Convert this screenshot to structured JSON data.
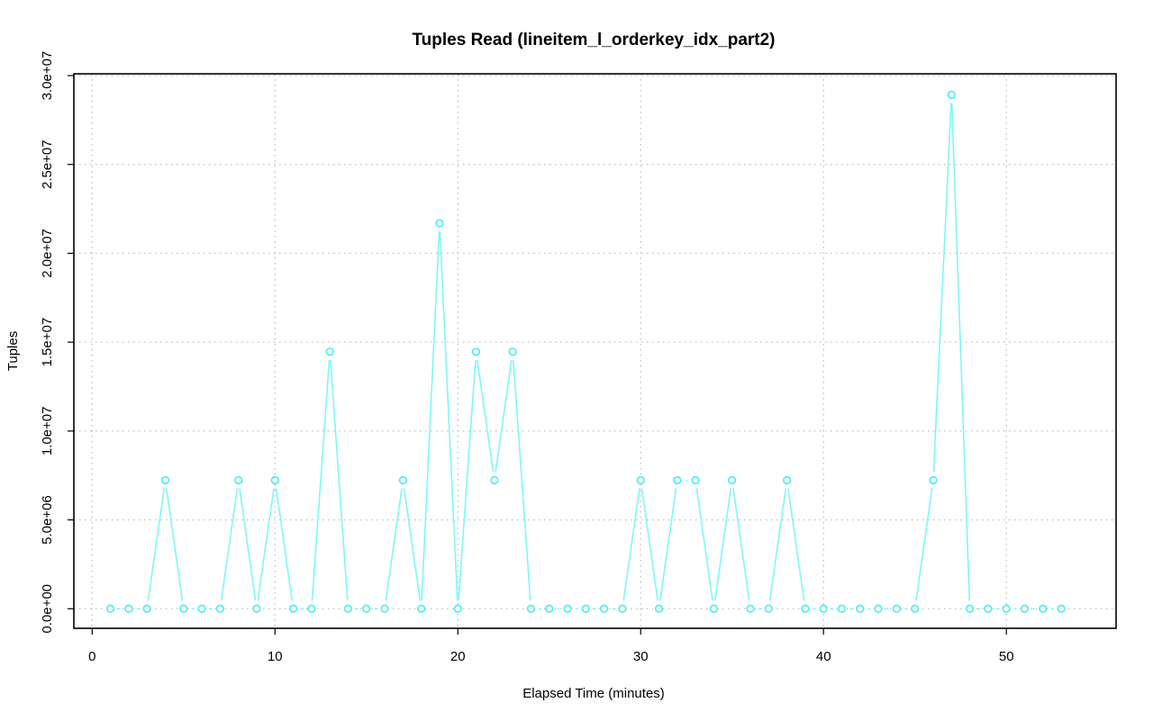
{
  "chart_data": {
    "type": "line",
    "title": "Tuples Read (lineitem_l_orderkey_idx_part2)",
    "xlabel": "Elapsed Time (minutes)",
    "ylabel": "Tuples",
    "xlim": [
      -1,
      56
    ],
    "ylim": [
      -1100000,
      30100000
    ],
    "x_ticks": [
      0,
      10,
      20,
      30,
      40,
      50
    ],
    "x_tick_labels": [
      "0",
      "10",
      "20",
      "30",
      "40",
      "50"
    ],
    "y_ticks": [
      0,
      5000000,
      10000000,
      15000000,
      20000000,
      25000000,
      30000000
    ],
    "y_tick_labels": [
      "0.0e+00",
      "5.0e+06",
      "1.0e+07",
      "1.5e+07",
      "2.0e+07",
      "2.5e+07",
      "3.0e+07"
    ],
    "grid": true,
    "series_color": "#7ff7f7",
    "series": [
      {
        "x": [
          1,
          2,
          3,
          4,
          5,
          6,
          7,
          8,
          9,
          10,
          11,
          12,
          13,
          14,
          15,
          16,
          17,
          18,
          19,
          20,
          21,
          22,
          23,
          24,
          25,
          26,
          27,
          28,
          29,
          30,
          31,
          32,
          33,
          34,
          35,
          36,
          37,
          38,
          39,
          40,
          41,
          42,
          43,
          44,
          45,
          46,
          47,
          48,
          49,
          50,
          51,
          52,
          53
        ],
        "values": [
          0,
          0,
          0,
          7230000,
          0,
          0,
          0,
          7230000,
          0,
          7230000,
          0,
          0,
          14460000,
          0,
          0,
          0,
          7230000,
          0,
          21690000,
          0,
          14460000,
          7230000,
          14460000,
          0,
          0,
          0,
          0,
          0,
          0,
          7230000,
          0,
          7230000,
          7230000,
          0,
          7230000,
          0,
          0,
          7230000,
          0,
          0,
          0,
          0,
          0,
          0,
          0,
          7230000,
          28920000,
          0,
          0,
          0,
          0,
          0,
          0
        ]
      }
    ]
  }
}
